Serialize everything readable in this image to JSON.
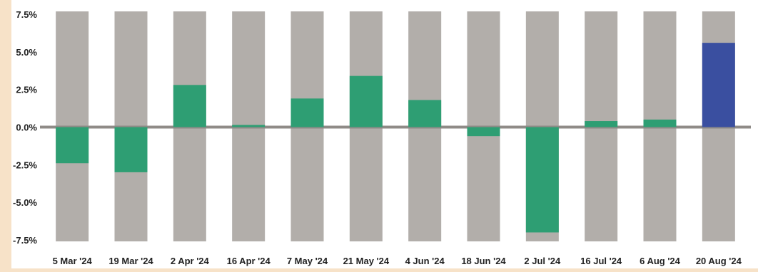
{
  "chart_data": {
    "type": "bar",
    "title": "",
    "xlabel": "",
    "ylabel": "",
    "categories": [
      "5 Mar '24",
      "19 Mar '24",
      "2 Apr '24",
      "16 Apr '24",
      "7 May '24",
      "21 May '24",
      "4 Jun '24",
      "18 Jun '24",
      "2 Jul '24",
      "16 Jul '24",
      "6 Aug '24",
      "20 Aug '24"
    ],
    "values": [
      -2.4,
      -3.0,
      2.8,
      0.1,
      1.9,
      3.4,
      1.8,
      -0.6,
      -7.0,
      0.4,
      0.5,
      5.6
    ],
    "ylim": [
      -7.5,
      7.5
    ],
    "yticks": [
      7.5,
      5.0,
      2.5,
      0.0,
      -2.5,
      -5.0,
      -7.5
    ],
    "ytick_labels": [
      "7.5%",
      "5.0%",
      "2.5%",
      "0.0%",
      "-2.5%",
      "-5.0%",
      "-7.5%"
    ],
    "grid": false,
    "legend": "none",
    "colors": {
      "page_background": "#f7e2c8",
      "plot_background": "#ffffff",
      "band": "#b2aeaa",
      "zero_line": "#8f8b87",
      "bar": "#2e9e73",
      "highlight_bar": "#3a4fa0"
    },
    "highlight_index": 11
  }
}
